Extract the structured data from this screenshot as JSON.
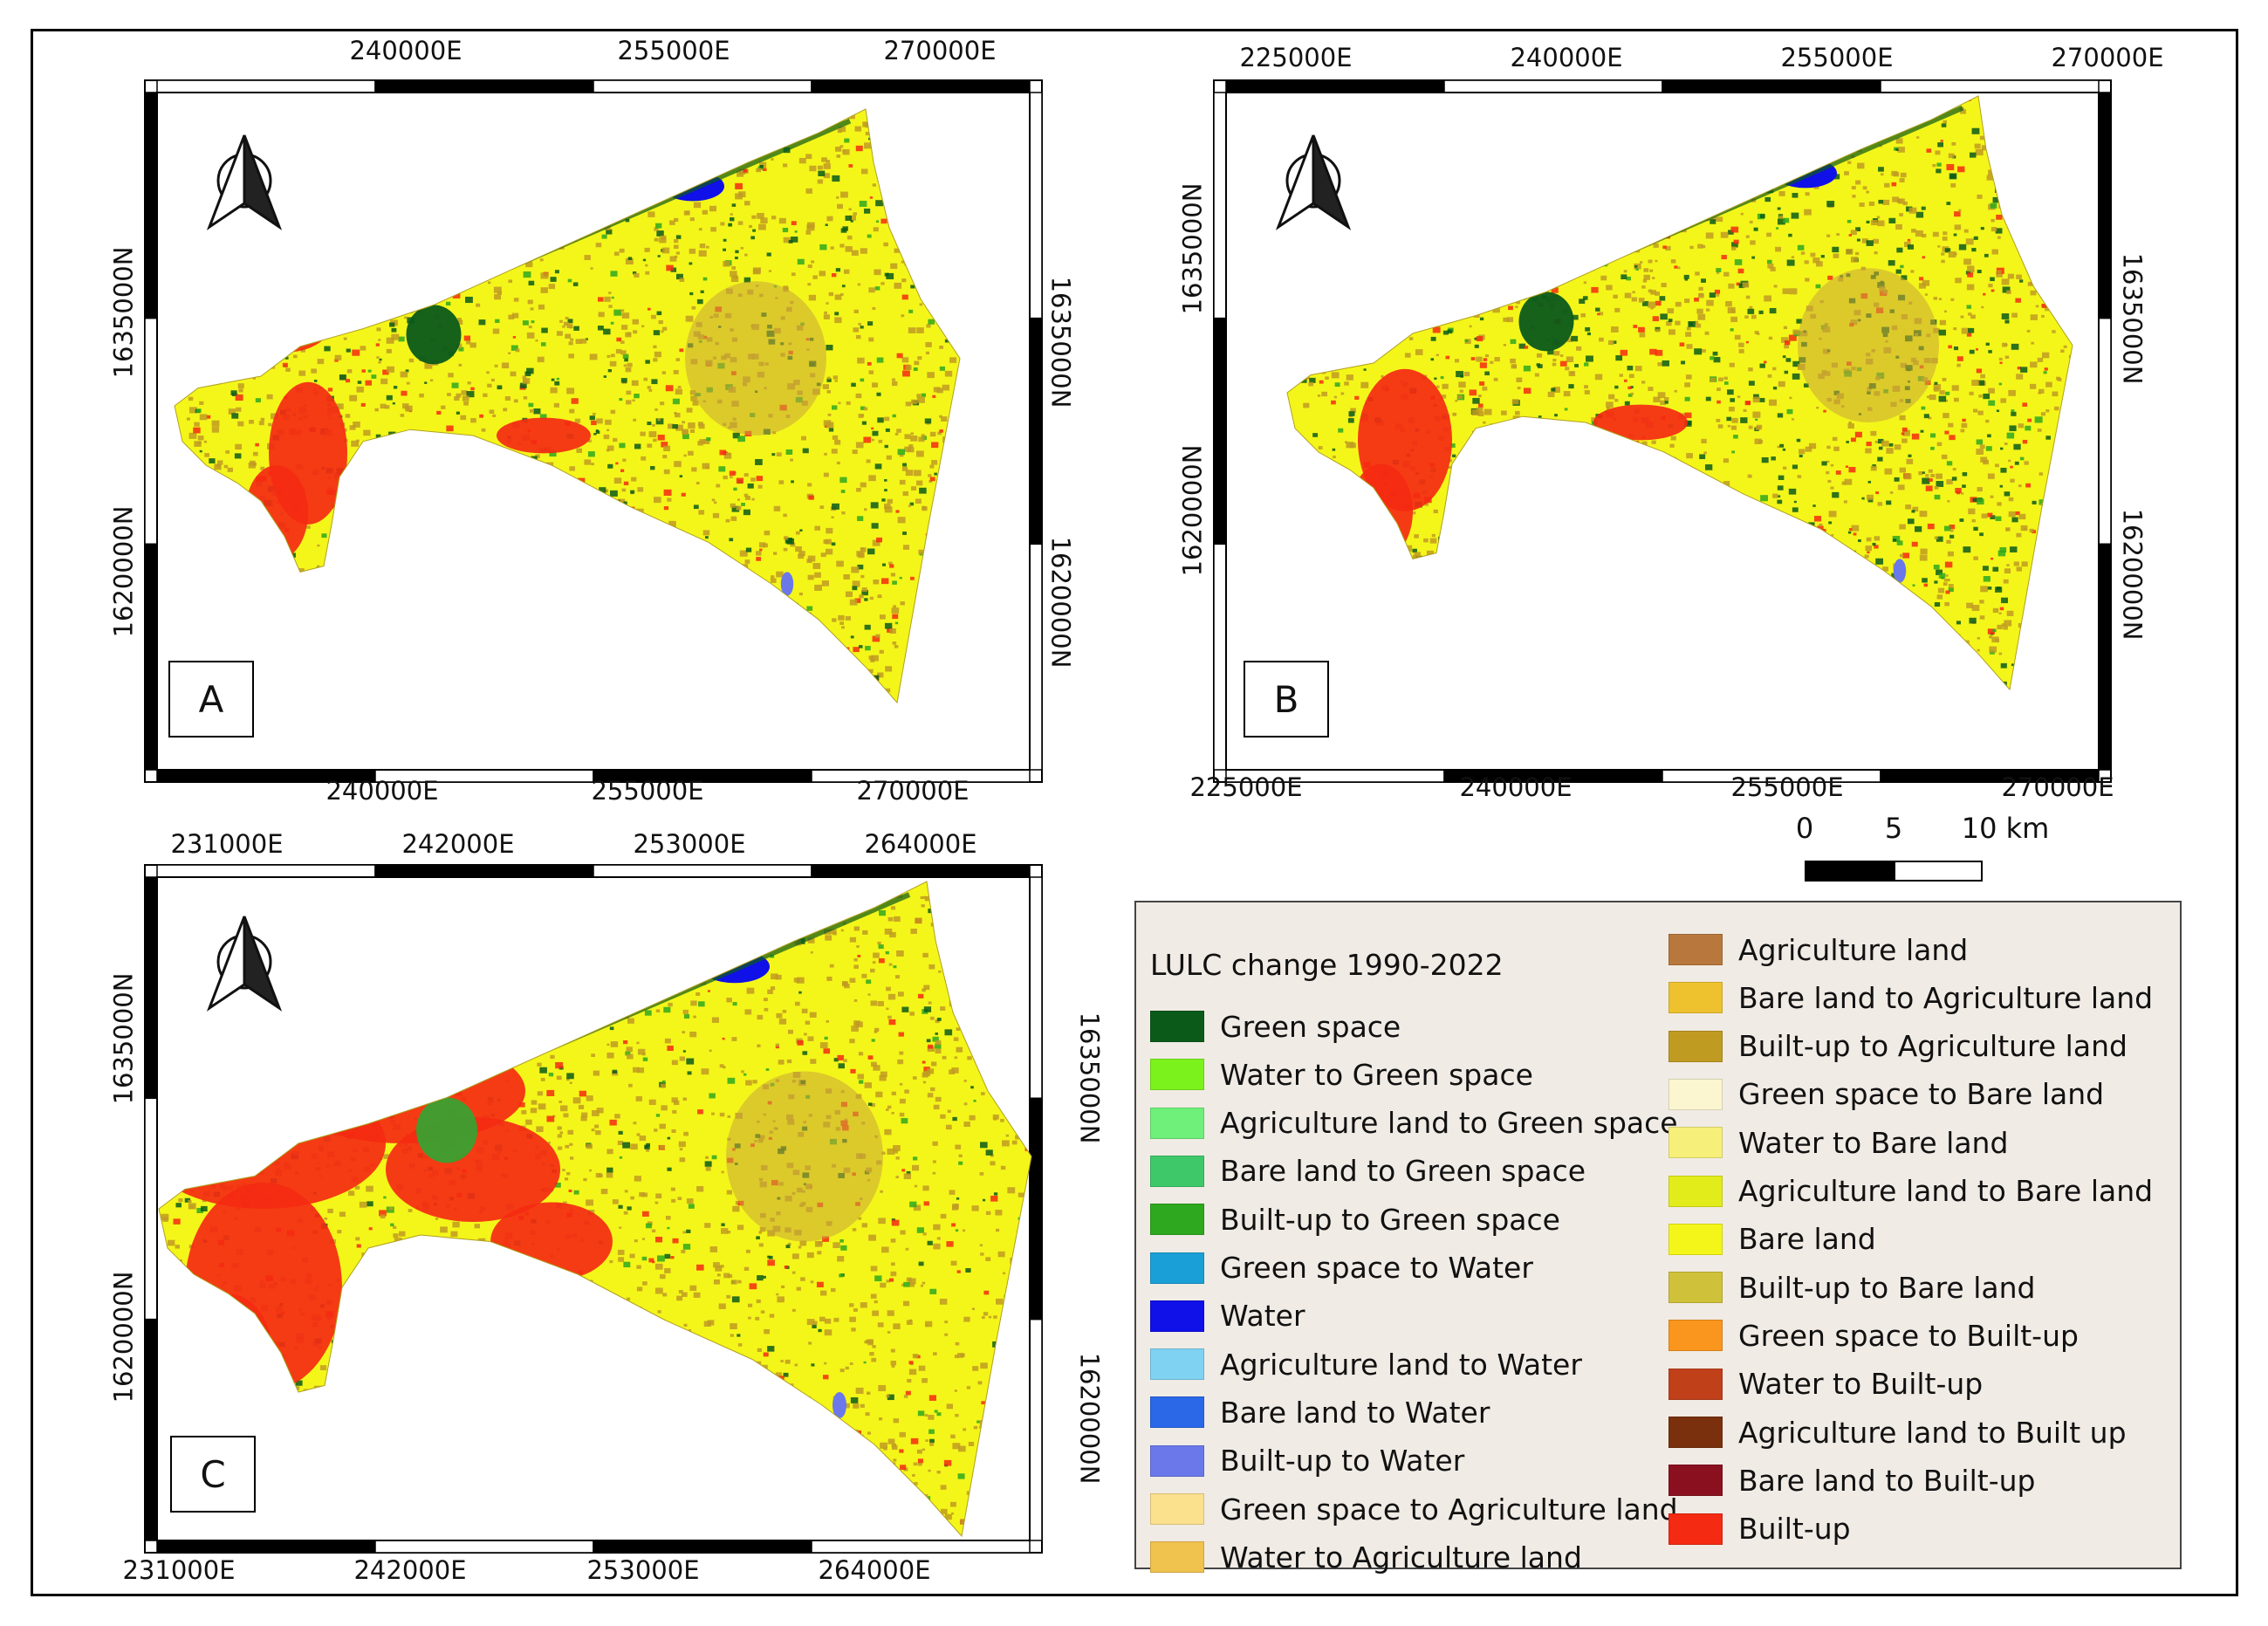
{
  "figure": {
    "panels": [
      {
        "letter": "A",
        "top_ticks": [
          "240000E",
          "255000E",
          "270000E"
        ],
        "bottom_ticks": [
          "240000E",
          "255000E",
          "270000E"
        ],
        "left_ticks": [
          "1635000N",
          "1620000N"
        ],
        "right_ticks": [
          "1635000N",
          "1620000N"
        ]
      },
      {
        "letter": "B",
        "top_ticks": [
          "225000E",
          "240000E",
          "255000E",
          "270000E"
        ],
        "bottom_ticks": [
          "225000E",
          "240000E",
          "255000E",
          "270000E"
        ],
        "left_ticks": [
          "1635000N",
          "1620000N"
        ],
        "right_ticks": [
          "1635000N",
          "1620000N"
        ]
      },
      {
        "letter": "C",
        "top_ticks": [
          "231000E",
          "242000E",
          "253000E",
          "264000E"
        ],
        "bottom_ticks": [
          "231000E",
          "242000E",
          "253000E",
          "264000E"
        ],
        "left_ticks": [
          "1635000N",
          "1620000N"
        ],
        "right_ticks": [
          "1635000N",
          "1620000N"
        ]
      }
    ],
    "scale_bar": {
      "labels": [
        "0",
        "5",
        "10 km"
      ]
    },
    "legend": {
      "title": "LULC change 1990-2022",
      "items": [
        {
          "label": "Green space",
          "color": "#0b5a1a"
        },
        {
          "label": "Water to Green space",
          "color": "#7cf21c"
        },
        {
          "label": "Agriculture land to Green space",
          "color": "#6ef07a"
        },
        {
          "label": "Bare land to Green space",
          "color": "#3ec86a"
        },
        {
          "label": "Built-up to Green space",
          "color": "#2ea81e"
        },
        {
          "label": "Green space to Water",
          "color": "#1aa0d6"
        },
        {
          "label": "Water",
          "color": "#1010e8"
        },
        {
          "label": "Agriculture land to Water",
          "color": "#7fd2f2"
        },
        {
          "label": "Bare land to Water",
          "color": "#2a68e8"
        },
        {
          "label": "Built-up to Water",
          "color": "#6a78ea"
        },
        {
          "label": "Green space to Agriculture land",
          "color": "#fbe08e"
        },
        {
          "label": "Water to Agriculture land",
          "color": "#f0c24e"
        },
        {
          "label": "Agriculture land",
          "color": "#b8773c"
        },
        {
          "label": "Bare land to Agriculture land",
          "color": "#eec22e"
        },
        {
          "label": "Built-up to Agriculture land",
          "color": "#c09b22"
        },
        {
          "label": "Green space to Bare land",
          "color": "#fbf6cf"
        },
        {
          "label": "Water to Bare land",
          "color": "#f6f07a"
        },
        {
          "label": "Agriculture land to Bare land",
          "color": "#e2ec1a"
        },
        {
          "label": "Bare land",
          "color": "#f4f61a"
        },
        {
          "label": "Built-up to Bare land",
          "color": "#cfc23a"
        },
        {
          "label": "Green space to Built-up",
          "color": "#fa961e"
        },
        {
          "label": "Water to Built-up",
          "color": "#c0401a"
        },
        {
          "label": "Agriculture land to Built up",
          "color": "#7a300c"
        },
        {
          "label": "Bare land to Built-up",
          "color": "#8a1020"
        },
        {
          "label": "Built-up",
          "color": "#f42a12"
        }
      ]
    },
    "palette": {
      "bare": "#f4f61a",
      "builtup": "#f42a12",
      "green": "#0b5a1a",
      "agri": "#c09b22",
      "water": "#1010e8"
    }
  }
}
